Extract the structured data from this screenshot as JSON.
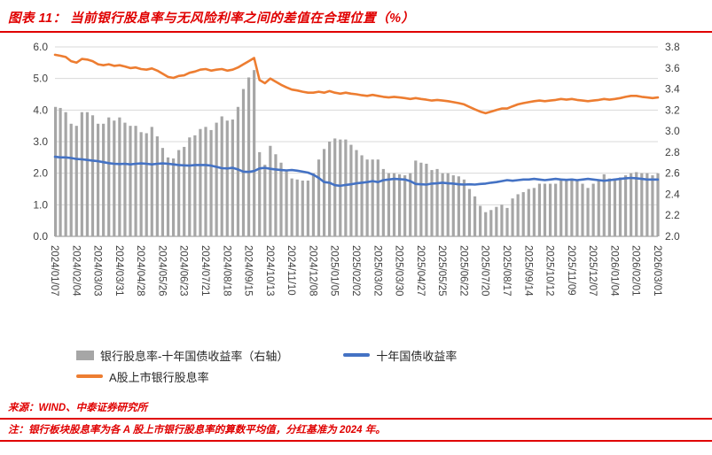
{
  "title": "图表 11： 当前银行股息率与无风险利率之间的差值在合理位置（%）",
  "footer": {
    "source": "来源：WIND、中泰证券研究所",
    "note": "注：银行板块股息率为各 A 股上市银行股息率的算数平均值，分红基准为 2024 年。"
  },
  "colors": {
    "accent_red": "#e00000",
    "bar_gray": "#a6a6a6",
    "line_blue": "#4472c4",
    "line_orange": "#ed7d31",
    "grid": "#d9d9d9",
    "tick_text": "#404040"
  },
  "chart_data": {
    "type": "bar",
    "subtype": "bar-line-combo",
    "title": "当前银行股息率与无风险利率之间的差值在合理位置（%）",
    "xlabel": "",
    "ylabel_left": "",
    "ylabel_right": "",
    "grid": "horizontal-only",
    "legend_position": "bottom-left",
    "left_axis": {
      "min": 0,
      "max": 6,
      "ticks": [
        "6.0",
        "5.0",
        "4.0",
        "3.0",
        "2.0",
        "1.0",
        "0.0"
      ]
    },
    "right_axis": {
      "min": 2.0,
      "max": 3.8,
      "ticks": [
        "3.8",
        "3.6",
        "3.4",
        "3.2",
        "3.0",
        "2.8",
        "2.6",
        "2.4",
        "2.2",
        "2.0"
      ]
    },
    "x_labels": [
      "2024/01/07",
      "2024/02/04",
      "2024/03/03",
      "2024/03/31",
      "2024/04/28",
      "2024/05/26",
      "2024/06/23",
      "2024/07/21",
      "2024/08/18",
      "2024/09/15",
      "2024/10/13",
      "2024/11/10",
      "2024/12/08",
      "2025/01/05",
      "2025/02/02",
      "2025/03/02",
      "2025/03/30",
      "2025/04/27",
      "2025/05/25",
      "2025/06/22",
      "2025/07/20",
      "2025/08/17",
      "2025/09/14",
      "2025/10/12",
      "2025/11/09",
      "2025/12/07",
      "2026/01/04",
      "2026/02/01",
      "2026/03/01"
    ],
    "x_label_every_n_points": 4,
    "weekly_points": 113,
    "series": [
      {
        "name": "银行股息率-十年国债收益率（右轴）",
        "type": "bar",
        "axis": "right",
        "color": "#a6a6a6",
        "derived": "A股上市银行股息率 minus 十年国债收益率"
      },
      {
        "name": "十年国债收益率",
        "type": "line",
        "axis": "left",
        "color": "#4472c4",
        "values": [
          2.52,
          2.5,
          2.5,
          2.48,
          2.45,
          2.44,
          2.42,
          2.4,
          2.38,
          2.35,
          2.32,
          2.3,
          2.29,
          2.3,
          2.28,
          2.3,
          2.31,
          2.3,
          2.28,
          2.3,
          2.31,
          2.3,
          2.28,
          2.26,
          2.25,
          2.24,
          2.26,
          2.26,
          2.26,
          2.24,
          2.2,
          2.16,
          2.15,
          2.17,
          2.12,
          2.05,
          2.04,
          2.07,
          2.15,
          2.17,
          2.14,
          2.12,
          2.1,
          2.09,
          2.1,
          2.08,
          2.05,
          2.02,
          1.95,
          1.85,
          1.72,
          1.7,
          1.62,
          1.6,
          1.63,
          1.65,
          1.68,
          1.7,
          1.72,
          1.75,
          1.72,
          1.78,
          1.8,
          1.82,
          1.81,
          1.8,
          1.75,
          1.66,
          1.65,
          1.64,
          1.67,
          1.68,
          1.7,
          1.68,
          1.67,
          1.65,
          1.64,
          1.65,
          1.64,
          1.66,
          1.67,
          1.7,
          1.72,
          1.75,
          1.78,
          1.76,
          1.78,
          1.8,
          1.8,
          1.82,
          1.8,
          1.78,
          1.8,
          1.82,
          1.8,
          1.79,
          1.8,
          1.78,
          1.8,
          1.82,
          1.8,
          1.78,
          1.76,
          1.78,
          1.8,
          1.82,
          1.84,
          1.85,
          1.84,
          1.82,
          1.8,
          1.8,
          1.8
        ]
      },
      {
        "name": "A股上市银行股息率",
        "type": "line",
        "axis": "left",
        "color": "#ed7d31",
        "values": [
          5.75,
          5.72,
          5.68,
          5.55,
          5.5,
          5.62,
          5.6,
          5.55,
          5.45,
          5.42,
          5.45,
          5.4,
          5.42,
          5.38,
          5.33,
          5.35,
          5.3,
          5.28,
          5.32,
          5.25,
          5.15,
          5.05,
          5.02,
          5.08,
          5.1,
          5.18,
          5.22,
          5.28,
          5.3,
          5.25,
          5.28,
          5.3,
          5.25,
          5.28,
          5.35,
          5.45,
          5.55,
          5.65,
          4.95,
          4.85,
          5.0,
          4.9,
          4.8,
          4.72,
          4.65,
          4.62,
          4.58,
          4.55,
          4.55,
          4.58,
          4.55,
          4.6,
          4.55,
          4.52,
          4.55,
          4.52,
          4.5,
          4.47,
          4.45,
          4.48,
          4.45,
          4.42,
          4.4,
          4.42,
          4.4,
          4.38,
          4.35,
          4.38,
          4.35,
          4.33,
          4.3,
          4.32,
          4.3,
          4.28,
          4.25,
          4.22,
          4.18,
          4.1,
          4.02,
          3.95,
          3.9,
          3.95,
          4.0,
          4.05,
          4.05,
          4.12,
          4.18,
          4.22,
          4.25,
          4.28,
          4.3,
          4.28,
          4.3,
          4.32,
          4.35,
          4.33,
          4.35,
          4.32,
          4.3,
          4.28,
          4.3,
          4.32,
          4.35,
          4.33,
          4.35,
          4.38,
          4.42,
          4.45,
          4.45,
          4.42,
          4.4,
          4.38,
          4.4
        ]
      }
    ]
  }
}
